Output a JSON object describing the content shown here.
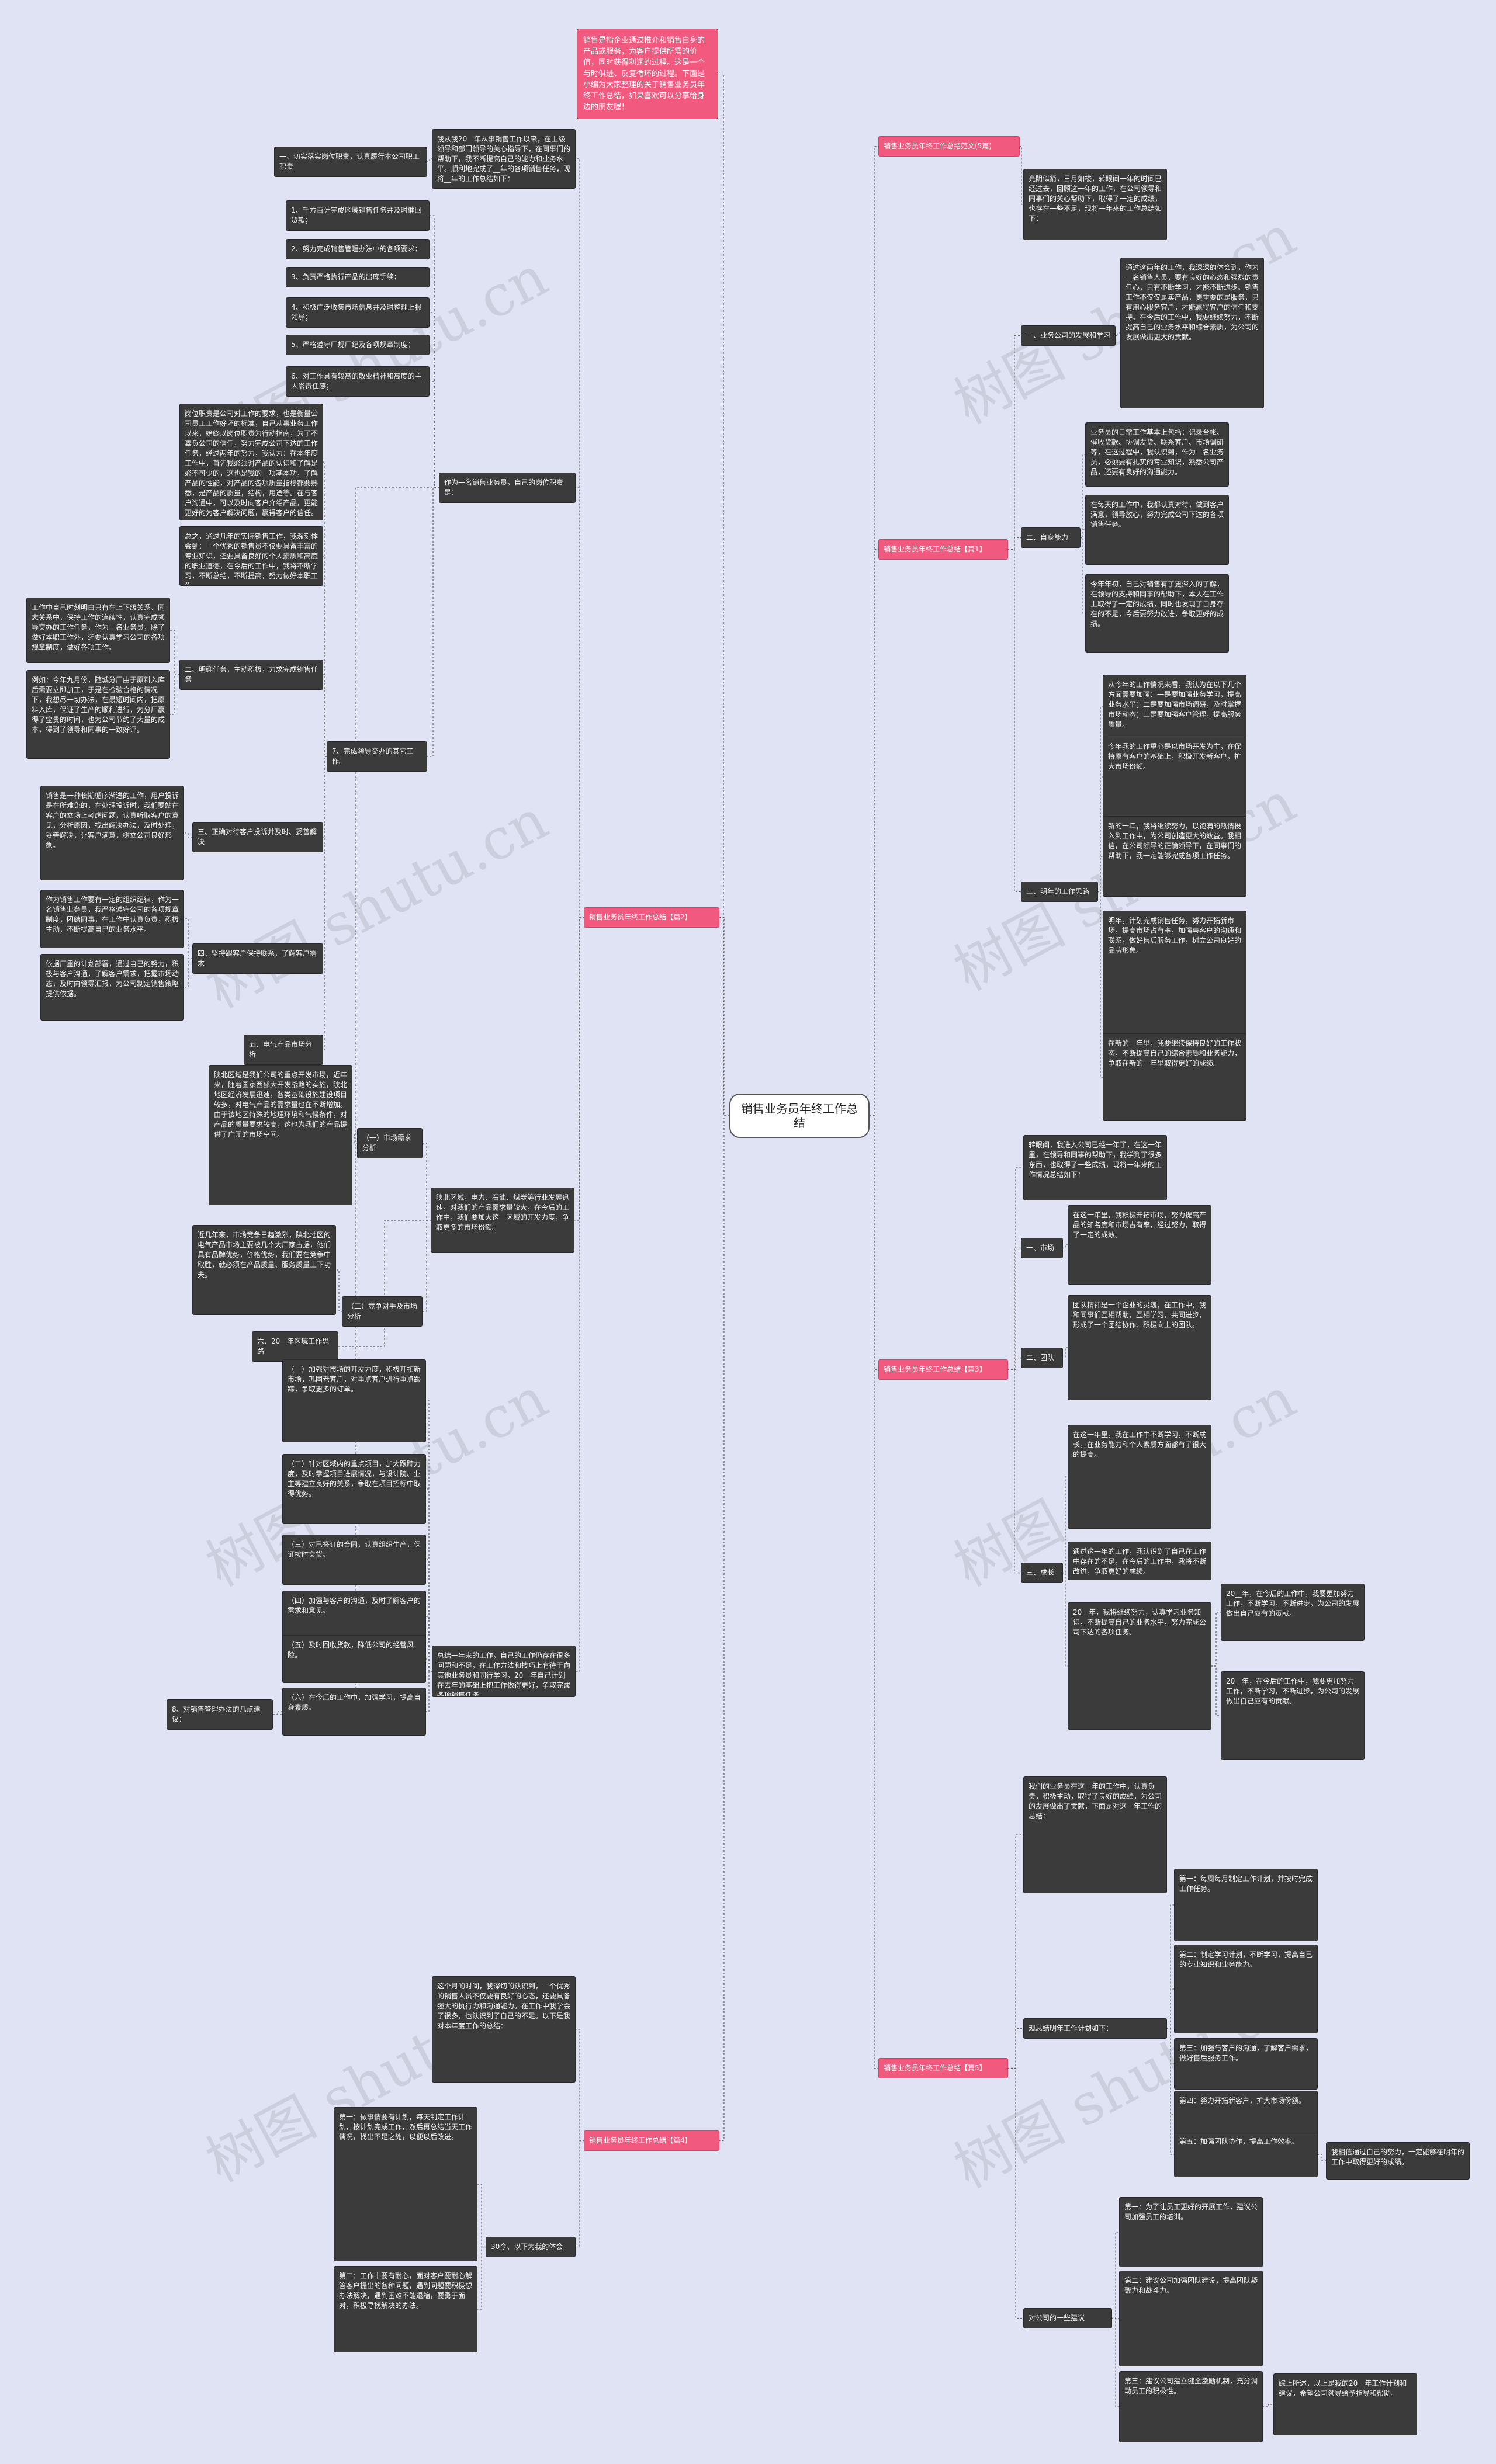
{
  "root": "销售业务员年终工作总结",
  "intro": "销售是指企业通过推介和销售自身的产品或服务，为客户提供所需的价值，同时获得利润的过程。这是一个与时俱进、反复循环的过程。下面是小编为大家整理的关于销售业务员年终工作总结，如果喜欢可以分享给身边的朋友喔！",
  "branches": {
    "p1": "销售业务员年终工作总结范文(5篇)",
    "p2": "销售业务员年终工作总结【篇2】",
    "p3": "销售业务员年终工作总结【篇3】",
    "p4": "销售业务员年终工作总结【篇4】",
    "p5": "销售业务员年终工作总结【篇5】",
    "p1b": "销售业务员年终工作总结【篇1】"
  },
  "left": {
    "top_intro": "我从我20__年从事销售工作以来，在上级领导和部门领导的关心指导下，在同事们的帮助下，我不断提高自己的能力和业务水平。顺利地完成了__年的各项销售任务，现将__年的工作总结如下：",
    "top_side": "一、切实落实岗位职责，认真履行本公司职工职责",
    "list": [
      "1、千方百计完成区域销售任务并及时催回货款；",
      "2、努力完成销售管理办法中的各项要求；",
      "3、负责严格执行产品的出库手续；",
      "4、积极广泛收集市场信息并及时整理上报领导；",
      "5、严格遵守厂规厂纪及各项规章制度；",
      "6、对工作具有较高的敬业精神和高度的主人翁责任感；"
    ],
    "learn": "作为一名销售业务员，自己的岗位职责是：",
    "team_title": "7、完成领导交办的其它工作。",
    "team_body": "岗位职责是公司对工作的要求，也是衡量公司员工工作好坏的标准，自己从事业务工作以来，始终以岗位职责为行动指南，为了不辜负公司的信任，努力完成公司下达的工作任务，经过两年的努力，我认为：在本年度工作中，首先我必须对产品的认识和了解是必不可少的，这也是我的一项基本功，了解产品的性能，对产品的各项质量指标都要熟悉，是产品的质量，结构，用途等。在与客户沟通中，可以及时向客户介绍产品，更能更好的为客户解决问题，赢得客户的信任。",
    "team2": "总之，通过几年的实际销售工作，我深刻体会到：一个优秀的销售员不仅要具备丰富的专业知识，还要具备良好的个人素质和高度的职业道德，在今后的工作中，我将不断学习，不断总结，不断提高，努力做好本职工作。",
    "c1_title": "二、明确任务，主动积极，力求完成销售任务",
    "c1a": "工作中自己时刻明白只有在上下级关系、同志关系中，保持工作的连续性，认真完成领导交办的工作任务，作为一名业务员，除了做好本职工作外，还要认真学习公司的各项规章制度，做好各项工作。",
    "c1b": "例如：今年九月份，随城分厂由于原料入库后需要立即加工，于是在检验合格的情况下，我想尽一切办法，在最短时间内，把原料入库，保证了生产的顺利进行，为分厂赢得了宝贵的时间，也为公司节约了大量的成本，得到了领导和同事的一致好评。",
    "c2_title": "三、正确对待客户投诉并及时、妥善解决",
    "c2a": "销售是一种长期循序渐进的工作，用户投诉是在所难免的，在处理投诉时，我们要站在客户的立场上考虑问题，认真听取客户的意见，分析原因，找出解决办法，及时处理，妥善解决，让客户满意，树立公司良好形象。",
    "c3_title": "四、坚持跟客户保持联系，了解客户需求",
    "c3a": "作为销售工作要有一定的组织纪律，作为一名销售业务员，我严格遵守公司的各项规章制度，团结同事，在工作中认真负责，积极主动，不断提高自己的业务水平。",
    "c3b": "依据厂里的计划部署，通过自己的努力，积极与客户沟通，了解客户需求，把握市场动态，及时向领导汇报，为公司制定销售策略提供依据。",
    "c4_title": "五、电气产品市场分析",
    "c5_title": "（一）市场需求分析",
    "c5a": "陕北区域是我们公司的重点开发市场，近年来，随着国家西部大开发战略的实施，陕北地区经济发展迅速，各类基础设施建设项目较多，对电气产品的需求量也在不断增加。由于该地区特殊的地理环境和气候条件，对产品的质量要求较高，这也为我们的产品提供了广阔的市场空间。",
    "c5b": "陕北区域，电力、石油、煤炭等行业发展迅速，对我们的产品需求量较大，在今后的工作中，我们要加大这一区域的开发力度，争取更多的市场份额。",
    "c6_title": "（二）竞争对手及市场分析",
    "c6a": "近几年来，市场竞争日趋激烈，陕北地区的电气产品市场主要被几个大厂家占据，他们具有品牌优势，价格优势，我们要在竞争中取胜，就必须在产品质量、服务质量上下功夫。",
    "c7_title": "六、20__年区域工作思路",
    "ideas": [
      "（一）加强对市场的开发力度，积极开拓新市场，巩固老客户，对重点客户进行重点跟踪，争取更多的订单。",
      "（二）针对区域内的重点项目，加大跟踪力度，及时掌握项目进展情况，与设计院、业主等建立良好的关系，争取在项目招标中取得优势。",
      "（三）对已签订的合同，认真组织生产，保证按时交货。",
      "（四）加强与客户的沟通，及时了解客户的需求和意见。",
      "（五）及时回收货款，降低公司的经营风险。",
      "（六）在今后的工作中，加强学习，提高自身素质。"
    ],
    "ideas_head": "总结一年来的工作，自己的工作仍存在很多问题和不足，在工作方法和技巧上有待于向其他业务员和同行学习，20__年自己计划在去年的基础上把工作做得更好，争取完成各项销售任务。",
    "plan_title": "8、对销售管理办法的几点建议：",
    "p4_intro": "这个月的时间，我深切的认识到，一个优秀的销售人员不仅要有良好的心态，还要具备强大的执行力和沟通能力。在工作中我学会了很多，也认识到了自己的不足。以下是我对本年度工作的总结：",
    "p4_title": "30今、以下为我的体会",
    "p4a": "第一：做事情要有计划，每天制定工作计划，按计划完成工作，然后再总结当天工作情况，找出不足之处，以便以后改进。",
    "p4b": "第二：工作中要有耐心，面对客户要耐心解答客户提出的各种问题，遇到问题要积极想办法解决，遇到困难不能退缩，要勇于面对，积极寻找解决的办法。"
  },
  "right": {
    "p1_intro": "光阴似箭，日月如梭，转眼间一年的时间已经过去，回顾这一年的工作，在公司领导和同事们的关心帮助下，取得了一定的成绩，也存在一些不足，现将一年来的工作总结如下：",
    "s1_title": "一、业务公司的发展和学习",
    "s1a": "通过这两年的工作，我深深的体会到，作为一名销售人员，要有良好的心态和强烈的责任心，只有不断学习，才能不断进步。销售工作不仅仅是卖产品，更重要的是服务，只有用心服务客户，才能赢得客户的信任和支持。在今后的工作中，我要继续努力，不断提高自己的业务水平和综合素质，为公司的发展做出更大的贡献。",
    "s2_title": "二、自身能力",
    "s2a": "业务员的日常工作基本上包括：记录台帐、催收货款、协调发货、联系客户、市场调研等，在这过程中，我认识到，作为一名业务员，必须要有扎实的专业知识，熟悉公司产品，还要有良好的沟通能力。",
    "s2b": "在每天的工作中，我都认真对待，做到客户满意，领导放心，努力完成公司下达的各项销售任务。",
    "s2c": "今年年初，自己对销售有了更深入的了解，在领导的支持和同事的帮助下，本人在工作上取得了一定的成绩，同时也发现了自身存在的不足，今后要努力改进，争取更好的成绩。",
    "s3_title": "三、明年的工作思路",
    "s3a": "从今年的工作情况来看，我认为在以下几个方面需要加强：一是要加强业务学习，提高业务水平；二是要加强市场调研，及时掌握市场动态；三是要加强客户管理，提高服务质量。",
    "s3b": "今年我的工作重心是以市场开发为主，在保持原有客户的基础上，积极开发新客户，扩大市场份额。",
    "s3c": "新的一年，我将继续努力，以饱满的热情投入到工作中，为公司创造更大的效益。我相信，在公司领导的正确领导下，在同事们的帮助下，我一定能够完成各项工作任务。",
    "s3d": "明年，计划完成销售任务，努力开拓新市场，提高市场占有率，加强与客户的沟通和联系，做好售后服务工作，树立公司良好的品牌形象。",
    "s3e": "在新的一年里，我要继续保持良好的工作状态，不断提高自己的综合素质和业务能力，争取在新的一年里取得更好的成绩。",
    "b3_intro": "转眼间，我进入公司已经一年了，在这一年里，在领导和同事的帮助下，我学到了很多东西，也取得了一些成绩，现将一年来的工作情况总结如下：",
    "b3_1": "一、市场",
    "b3_1a": "在这一年里，我积极开拓市场，努力提高产品的知名度和市场占有率，经过努力，取得了一定的成效。",
    "b3_2": "二、团队",
    "b3_2a": "团队精神是一个企业的灵魂，在工作中，我和同事们互相帮助，互相学习，共同进步，形成了一个团结协作、积极向上的团队。",
    "b3_3": "三、成长",
    "b3_3a": "在这一年里，我在工作中不断学习，不断成长，在业务能力和个人素质方面都有了很大的提高。",
    "b3_3b": "通过这一年的工作，我认识到了自己在工作中存在的不足，在今后的工作中，我将不断改进，争取更好的成绩。",
    "b3_3c": "20__年，我将继续努力，认真学习业务知识，不断提高自己的业务水平，努力完成公司下达的各项任务。",
    "b3_3d": "20__年，在今后的工作中，我要更加努力工作，不断学习，不断进步，为公司的发展做出自己应有的贡献。",
    "b5_intro": "我们的业务员在这一年的工作中，认真负责，积极主动，取得了良好的成绩，为公司的发展做出了贡献，下面是对这一年工作的总结：",
    "b5_title": "现总结明年工作计划如下：",
    "b5_plan": [
      "第一：每周每月制定工作计划，并按时完成工作任务。",
      "第二：制定学习计划，不断学习，提高自己的专业知识和业务能力。",
      "第三：加强与客户的沟通，了解客户需求，做好售后服务工作。",
      "第四：努力开拓新客户，扩大市场份额。",
      "第五：加强团队协作，提高工作效率。"
    ],
    "b5_end": "我相信通过自己的努力，一定能够在明年的工作中取得更好的成绩。",
    "b5_final_title": "对公司的一些建议",
    "b5_final": [
      "第一：为了让员工更好的开展工作，建议公司加强员工的培训。",
      "第二：建议公司加强团队建设，提高团队凝聚力和战斗力。",
      "第三：建议公司建立健全激励机制，充分调动员工的积极性。"
    ],
    "b5_last": "综上所述，以上是我的20__年工作计划和建议，希望公司领导给予指导和帮助。"
  }
}
